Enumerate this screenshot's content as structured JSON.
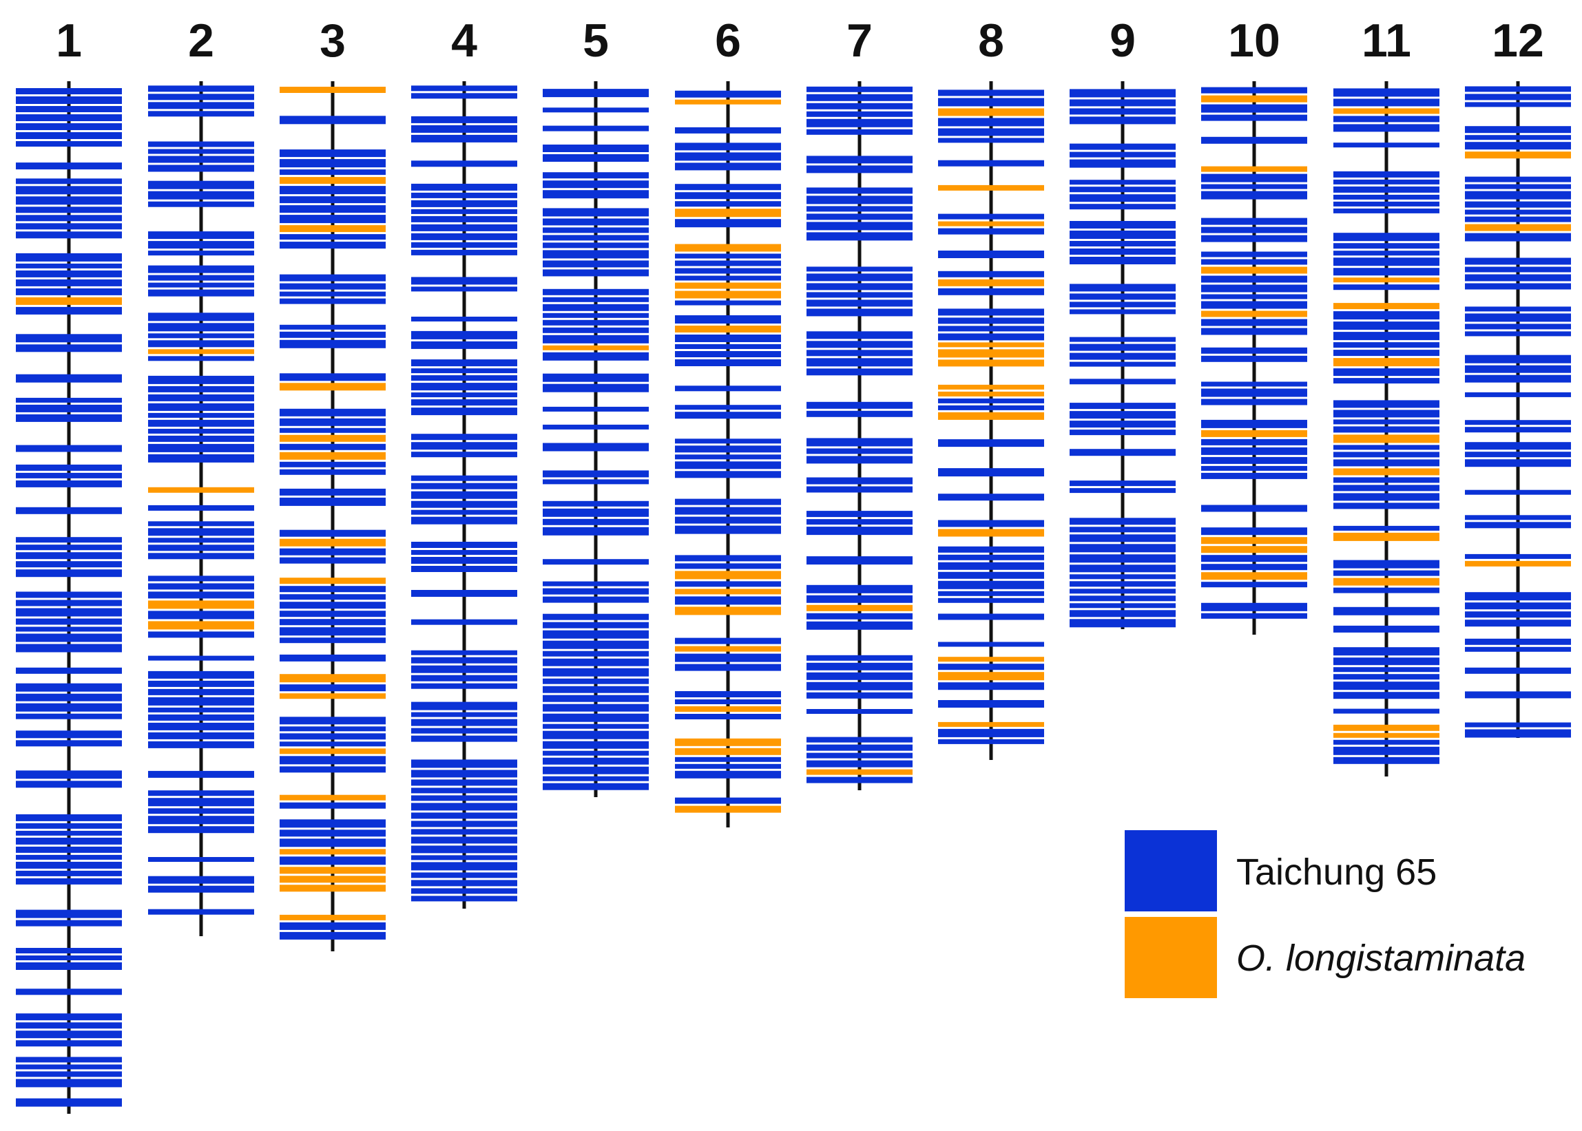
{
  "colors": {
    "taichung": "#0b32d6",
    "longistaminata": "#ff9900",
    "axis": "#111111"
  },
  "legend": {
    "items": [
      {
        "key": "taichung",
        "label": "Taichung 65",
        "italic": false
      },
      {
        "key": "longistaminata",
        "label": "O. longistaminata",
        "italic": true
      }
    ]
  },
  "chromosomes": [
    {
      "label": "1",
      "orange_marker_count": 1
    },
    {
      "label": "2",
      "orange_marker_count": 4
    },
    {
      "label": "3",
      "orange_marker_count": 17
    },
    {
      "label": "4",
      "orange_marker_count": 0
    },
    {
      "label": "5",
      "orange_marker_count": 1
    },
    {
      "label": "6",
      "orange_marker_count": 14
    },
    {
      "label": "7",
      "orange_marker_count": 2
    },
    {
      "label": "8",
      "orange_marker_count": 14
    },
    {
      "label": "9",
      "orange_marker_count": 0
    },
    {
      "label": "10",
      "orange_marker_count": 8
    },
    {
      "label": "11",
      "orange_marker_count": 10
    },
    {
      "label": "12",
      "orange_marker_count": 3
    }
  ]
}
